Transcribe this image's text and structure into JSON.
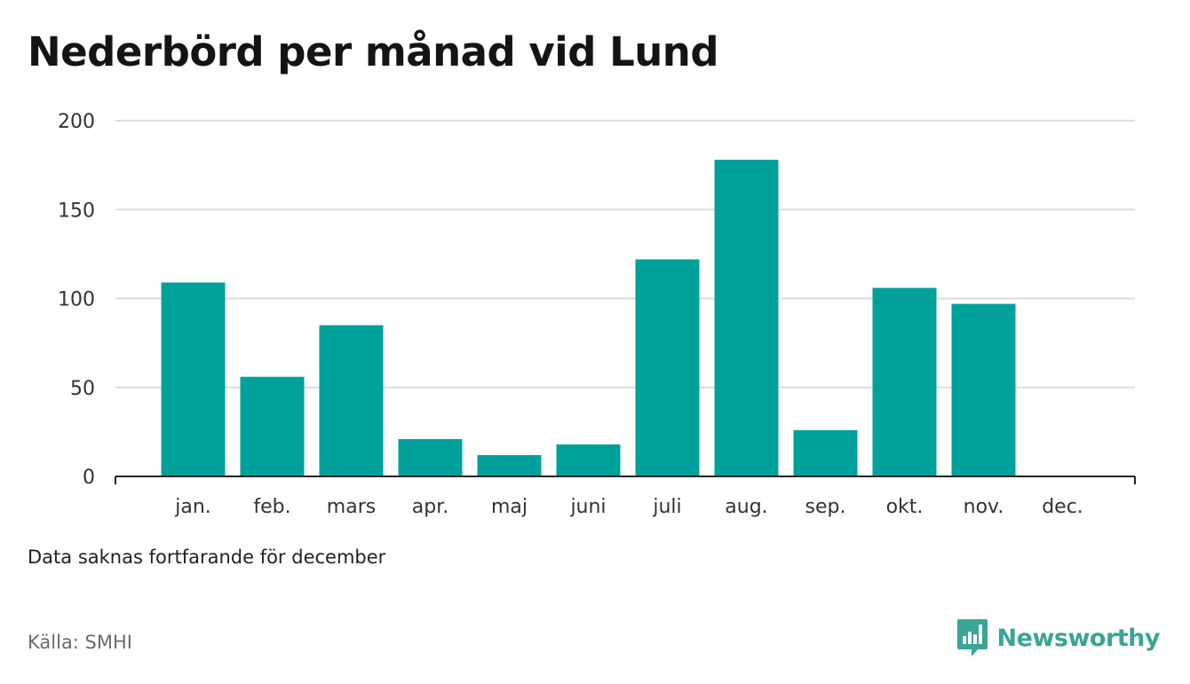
{
  "title": "Nederbörd per månad vid Lund",
  "note": "Data saknas fortfarande för december",
  "source": "Källa: SMHI",
  "brand": {
    "name": "Newsworthy",
    "icon": "newsworthy-logo-icon",
    "color": "#3aa497"
  },
  "colors": {
    "bar": "#00a19a",
    "grid": "#dddddd",
    "axis": "#222222"
  },
  "chart_data": {
    "type": "bar",
    "categories": [
      "jan.",
      "feb.",
      "mars",
      "apr.",
      "maj",
      "juni",
      "juli",
      "aug.",
      "sep.",
      "okt.",
      "nov.",
      "dec."
    ],
    "values": [
      109,
      56,
      85,
      21,
      12,
      18,
      122,
      178,
      26,
      106,
      97,
      null
    ],
    "yticks": [
      0,
      50,
      100,
      150,
      200
    ],
    "ylim": [
      0,
      200
    ],
    "grid": true,
    "legend": "none",
    "xlabel": "",
    "ylabel": ""
  }
}
